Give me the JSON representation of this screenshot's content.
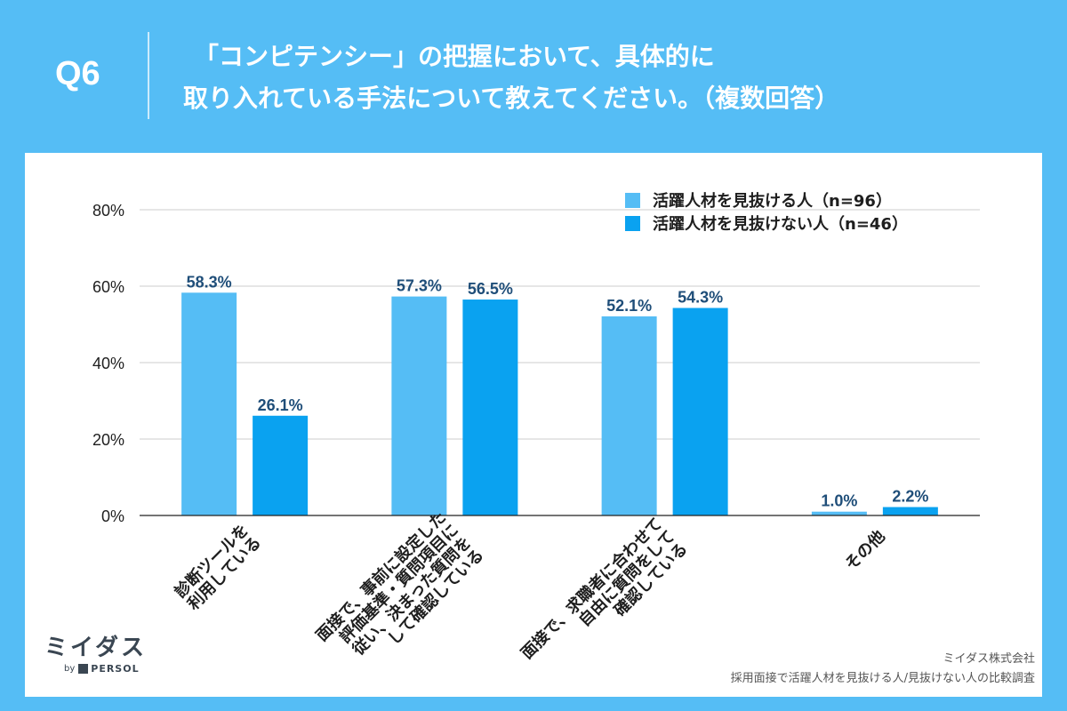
{
  "header": {
    "q_label": "Q6",
    "title_line1": "「コンピテンシー」の把握において、具体的に",
    "title_line2": "取り入れている手法について教えてください。（複数回答）"
  },
  "colors": {
    "background": "#55bdf5",
    "series1": "#55bdf5",
    "series2": "#0aa2f0",
    "data_label": "#1f4e79",
    "grid": "#cccccc"
  },
  "chart_data": {
    "type": "bar",
    "categories": [
      "診断ツールを\n利用している",
      "面接で、事前に設定した\n評価基準・質問項目に\n従い、決まった質問を\nして確認している",
      "面接で、求職者に合わせて\n自由に質問をして\n確認している",
      "その他"
    ],
    "series": [
      {
        "name": "活躍人材を見抜ける人（n=96）",
        "values": [
          58.3,
          57.3,
          52.1,
          1.0
        ]
      },
      {
        "name": "活躍人材を見抜けない人（n=46）",
        "values": [
          26.1,
          56.5,
          54.3,
          2.2
        ]
      }
    ],
    "value_labels": [
      [
        "58.3%",
        "57.3%",
        "52.1%",
        "1.0%"
      ],
      [
        "26.1%",
        "56.5%",
        "54.3%",
        "2.2%"
      ]
    ],
    "yticks": [
      "0%",
      "20%",
      "40%",
      "60%",
      "80%"
    ],
    "ylim": [
      0,
      80
    ],
    "grid": true,
    "legend_position": "top-right"
  },
  "logo": {
    "main": "ミイダス",
    "by": "by",
    "brand": "PERSOL"
  },
  "source": {
    "line1": "ミイダス株式会社",
    "line2": "採用面接で活躍人材を見抜ける人/見抜けない人の比較調査"
  }
}
